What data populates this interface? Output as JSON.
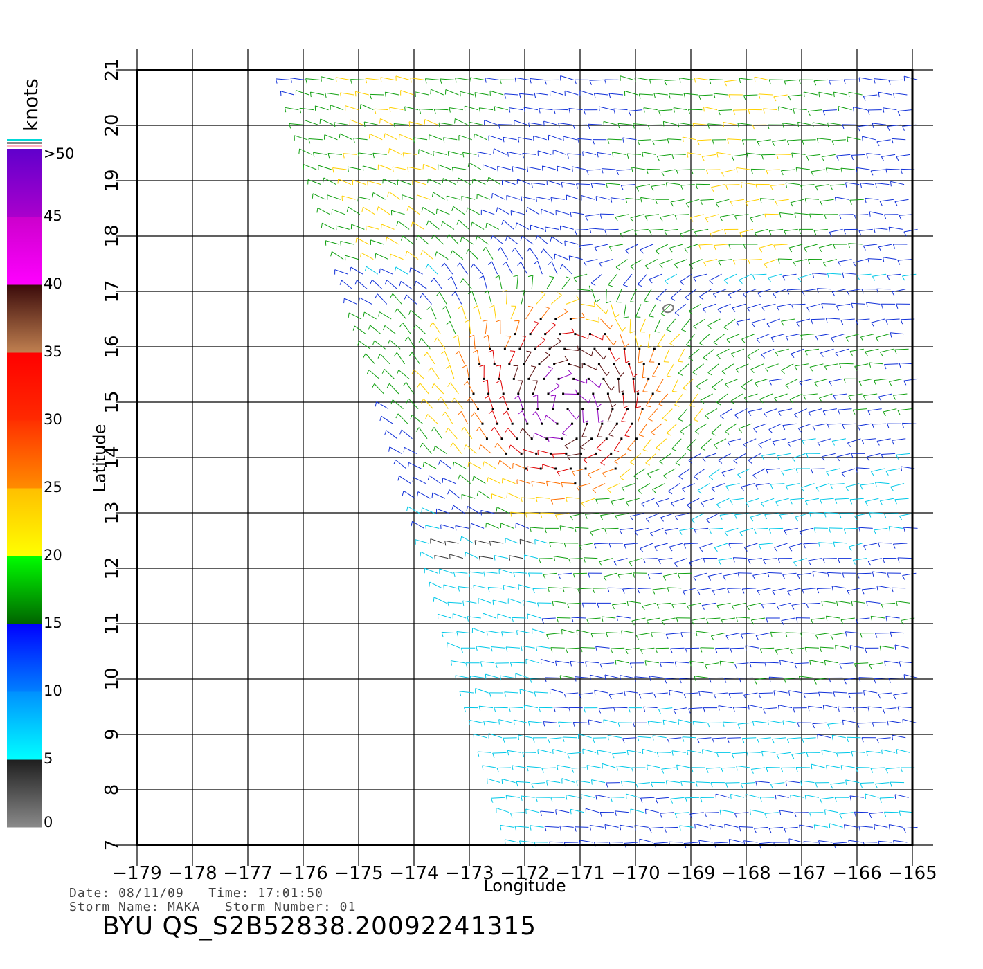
{
  "chart_data": {
    "type": "wind-vector-map",
    "xlabel": "Longitude",
    "ylabel": "Latitude",
    "xlim": [
      -179,
      -165
    ],
    "ylim": [
      7,
      21
    ],
    "x_ticks": [
      "−179",
      "−178",
      "−177",
      "−176",
      "−175",
      "−174",
      "−173",
      "−172",
      "−171",
      "−170",
      "−169",
      "−168",
      "−167",
      "−166",
      "−165"
    ],
    "y_ticks": [
      "7",
      "8",
      "9",
      "10",
      "11",
      "12",
      "13",
      "14",
      "15",
      "16",
      "17",
      "18",
      "19",
      "20",
      "21"
    ],
    "grid": true,
    "storm_center": {
      "lon": -171.3,
      "lat": 14.8
    },
    "colorbar": {
      "unit": "knots",
      "labels": [
        "0",
        "5",
        "10",
        "15",
        "20",
        "25",
        "30",
        "35",
        "40",
        "45",
        ">50"
      ],
      "bands": [
        {
          "range": [
            0,
            5
          ],
          "colors": [
            "#8a8a8a",
            "#1e1e1e"
          ]
        },
        {
          "range": [
            5,
            10
          ],
          "colors": [
            "#00ffff",
            "#0090ff"
          ]
        },
        {
          "range": [
            10,
            15
          ],
          "colors": [
            "#0080ff",
            "#0000ff"
          ]
        },
        {
          "range": [
            15,
            20
          ],
          "colors": [
            "#006400",
            "#00ff00"
          ]
        },
        {
          "range": [
            20,
            25
          ],
          "colors": [
            "#ffff00",
            "#ffbf00"
          ]
        },
        {
          "range": [
            25,
            30
          ],
          "colors": [
            "#ff8c00",
            "#ff3000"
          ]
        },
        {
          "range": [
            30,
            35
          ],
          "colors": [
            "#ff2a00",
            "#ff0000"
          ]
        },
        {
          "range": [
            35,
            40
          ],
          "colors": [
            "#c08050",
            "#3a0a0a"
          ]
        },
        {
          "range": [
            40,
            45
          ],
          "colors": [
            "#ff00ff",
            "#cc00cc"
          ]
        },
        {
          "range": [
            45,
            50
          ],
          "colors": [
            "#aa00cc",
            "#6000cc"
          ]
        }
      ]
    }
  },
  "meta": {
    "date_line": "Date: 08/11/09   Time: 17:01:50",
    "storm_line": "Storm Name: MAKA   Storm Number: 01",
    "title": "BYU QS_S2B52838.20092241315"
  }
}
